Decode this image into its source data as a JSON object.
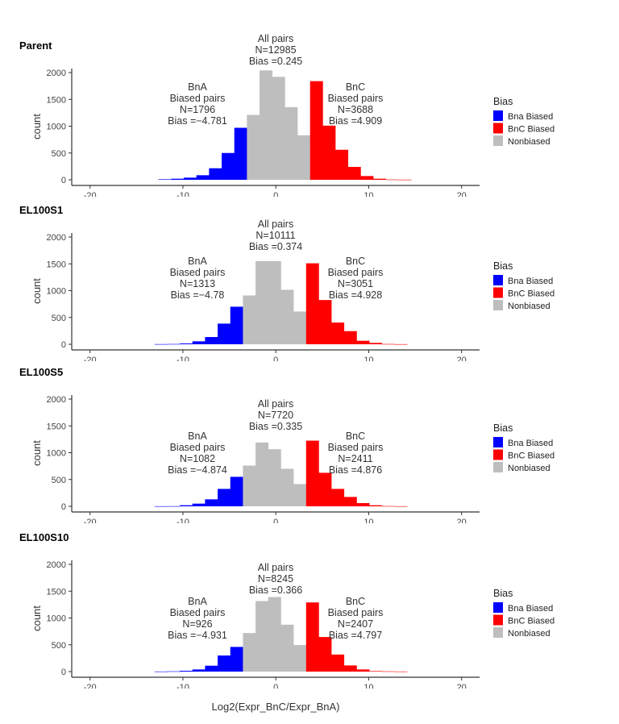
{
  "chart_data": [
    {
      "type": "bar",
      "title": "Parent",
      "xlabel": "",
      "ylabel": "count",
      "xlim": [
        -22,
        22
      ],
      "ylim": [
        0,
        2300
      ],
      "xticks": [
        -20,
        -10,
        0,
        10,
        20
      ],
      "yticks": [
        0,
        500,
        1000,
        1500,
        2000
      ],
      "grid": false,
      "legend_position": "right",
      "bin_start": -12.63,
      "bin_width": 1.36,
      "bins": [
        [
          "Bna Biased",
          10
        ],
        [
          "Bna Biased",
          20
        ],
        [
          "Bna Biased",
          40
        ],
        [
          "Bna Biased",
          85
        ],
        [
          "Bna Biased",
          215
        ],
        [
          "Bna Biased",
          500
        ],
        [
          "Bna Biased",
          970
        ],
        [
          "Nonbiased",
          1210
        ],
        [
          "Nonbiased",
          2040
        ],
        [
          "Nonbiased",
          1920
        ],
        [
          "Nonbiased",
          1355
        ],
        [
          "Nonbiased",
          830
        ],
        [
          "BnC Biased",
          1840
        ],
        [
          "BnC Biased",
          1010
        ],
        [
          "BnC Biased",
          560
        ],
        [
          "BnC Biased",
          240
        ],
        [
          "BnC Biased",
          70
        ],
        [
          "BnC Biased",
          20
        ],
        [
          "BnC Biased",
          5
        ],
        [
          "BnC Biased",
          2
        ]
      ],
      "annotations": {
        "all": [
          "All pairs",
          "N=12985",
          "Bias =0.245"
        ],
        "bna": [
          "BnA",
          "Biased pairs",
          "N=1796",
          "Bias =−4.781"
        ],
        "bnc": [
          "BnC",
          "Biased pairs",
          "N=3688",
          "Bias =4.909"
        ]
      }
    },
    {
      "type": "bar",
      "title": "EL100S1",
      "xlabel": "",
      "ylabel": "count",
      "xlim": [
        -22,
        22
      ],
      "ylim": [
        0,
        2300
      ],
      "xticks": [
        -20,
        -10,
        0,
        10,
        20
      ],
      "yticks": [
        0,
        500,
        1000,
        1500,
        2000
      ],
      "grid": false,
      "legend_position": "right",
      "bin_start": -13.06,
      "bin_width": 1.36,
      "bins": [
        [
          "Bna Biased",
          3
        ],
        [
          "Bna Biased",
          5
        ],
        [
          "Bna Biased",
          15
        ],
        [
          "Bna Biased",
          55
        ],
        [
          "Bna Biased",
          135
        ],
        [
          "Bna Biased",
          385
        ],
        [
          "Bna Biased",
          700
        ],
        [
          "Nonbiased",
          910
        ],
        [
          "Nonbiased",
          1550
        ],
        [
          "Nonbiased",
          1550
        ],
        [
          "Nonbiased",
          1015
        ],
        [
          "Nonbiased",
          610
        ],
        [
          "BnC Biased",
          1510
        ],
        [
          "BnC Biased",
          825
        ],
        [
          "BnC Biased",
          405
        ],
        [
          "BnC Biased",
          245
        ],
        [
          "BnC Biased",
          65
        ],
        [
          "BnC Biased",
          25
        ],
        [
          "BnC Biased",
          5
        ],
        [
          "BnC Biased",
          2
        ]
      ],
      "annotations": {
        "all": [
          "All pairs",
          "N=10111",
          "Bias =0.374"
        ],
        "bna": [
          "BnA",
          "Biased pairs",
          "N=1313",
          "Bias =−4.78"
        ],
        "bnc": [
          "BnC",
          "Biased pairs",
          "N=3051",
          "Bias =4.928"
        ]
      }
    },
    {
      "type": "bar",
      "title": "EL100S5",
      "xlabel": "",
      "ylabel": "count",
      "xlim": [
        -22,
        22
      ],
      "ylim": [
        0,
        2300
      ],
      "xticks": [
        -20,
        -10,
        0,
        10,
        20
      ],
      "yticks": [
        0,
        500,
        1000,
        1500,
        2000
      ],
      "grid": false,
      "legend_position": "right",
      "bin_start": -13.06,
      "bin_width": 1.36,
      "bins": [
        [
          "Bna Biased",
          2
        ],
        [
          "Bna Biased",
          3
        ],
        [
          "Bna Biased",
          20
        ],
        [
          "Bna Biased",
          50
        ],
        [
          "Bna Biased",
          130
        ],
        [
          "Bna Biased",
          325
        ],
        [
          "Bna Biased",
          550
        ],
        [
          "Nonbiased",
          760
        ],
        [
          "Nonbiased",
          1190
        ],
        [
          "Nonbiased",
          1065
        ],
        [
          "Nonbiased",
          700
        ],
        [
          "Nonbiased",
          415
        ],
        [
          "BnC Biased",
          1225
        ],
        [
          "BnC Biased",
          625
        ],
        [
          "BnC Biased",
          325
        ],
        [
          "BnC Biased",
          175
        ],
        [
          "BnC Biased",
          60
        ],
        [
          "BnC Biased",
          20
        ],
        [
          "BnC Biased",
          5
        ],
        [
          "BnC Biased",
          2
        ]
      ],
      "annotations": {
        "all": [
          "All pairs",
          "N=7720",
          "Bias =0.335"
        ],
        "bna": [
          "BnA",
          "Biased pairs",
          "N=1082",
          "Bias =−4.874"
        ],
        "bnc": [
          "BnC",
          "Biased pairs",
          "N=2411",
          "Bias =4.876"
        ]
      }
    },
    {
      "type": "bar",
      "title": "EL100S10",
      "xlabel": "Log2(Expr_BnC/Expr_BnA)",
      "ylabel": "count",
      "xlim": [
        -22,
        22
      ],
      "ylim": [
        0,
        2300
      ],
      "xticks": [
        -20,
        -10,
        0,
        10,
        20
      ],
      "yticks": [
        0,
        500,
        1000,
        1500,
        2000
      ],
      "grid": false,
      "legend_position": "right",
      "bin_start": -13.06,
      "bin_width": 1.36,
      "bins": [
        [
          "Bna Biased",
          2
        ],
        [
          "Bna Biased",
          5
        ],
        [
          "Bna Biased",
          15
        ],
        [
          "Bna Biased",
          40
        ],
        [
          "Bna Biased",
          110
        ],
        [
          "Bna Biased",
          300
        ],
        [
          "Bna Biased",
          460
        ],
        [
          "Nonbiased",
          720
        ],
        [
          "Nonbiased",
          1315
        ],
        [
          "Nonbiased",
          1390
        ],
        [
          "Nonbiased",
          875
        ],
        [
          "Nonbiased",
          495
        ],
        [
          "BnC Biased",
          1290
        ],
        [
          "BnC Biased",
          645
        ],
        [
          "BnC Biased",
          318
        ],
        [
          "BnC Biased",
          115
        ],
        [
          "BnC Biased",
          40
        ],
        [
          "BnC Biased",
          10
        ],
        [
          "BnC Biased",
          5
        ],
        [
          "BnC Biased",
          2
        ]
      ],
      "annotations": {
        "all": [
          "All pairs",
          "N=8245",
          "Bias =0.366"
        ],
        "bna": [
          "BnA",
          "Biased pairs",
          "N=926",
          "Bias =−4.931"
        ],
        "bnc": [
          "BnC",
          "Biased pairs",
          "N=2407",
          "Bias =4.797"
        ]
      }
    }
  ],
  "legend": {
    "title": "Bias",
    "items": [
      {
        "label": "Bna Biased",
        "color": "#0000ff"
      },
      {
        "label": "BnC Biased",
        "color": "#ff0000"
      },
      {
        "label": "Nonbiased",
        "color": "#bebebe"
      }
    ]
  },
  "xlabel": "Log2(Expr_BnC/Expr_BnA)"
}
